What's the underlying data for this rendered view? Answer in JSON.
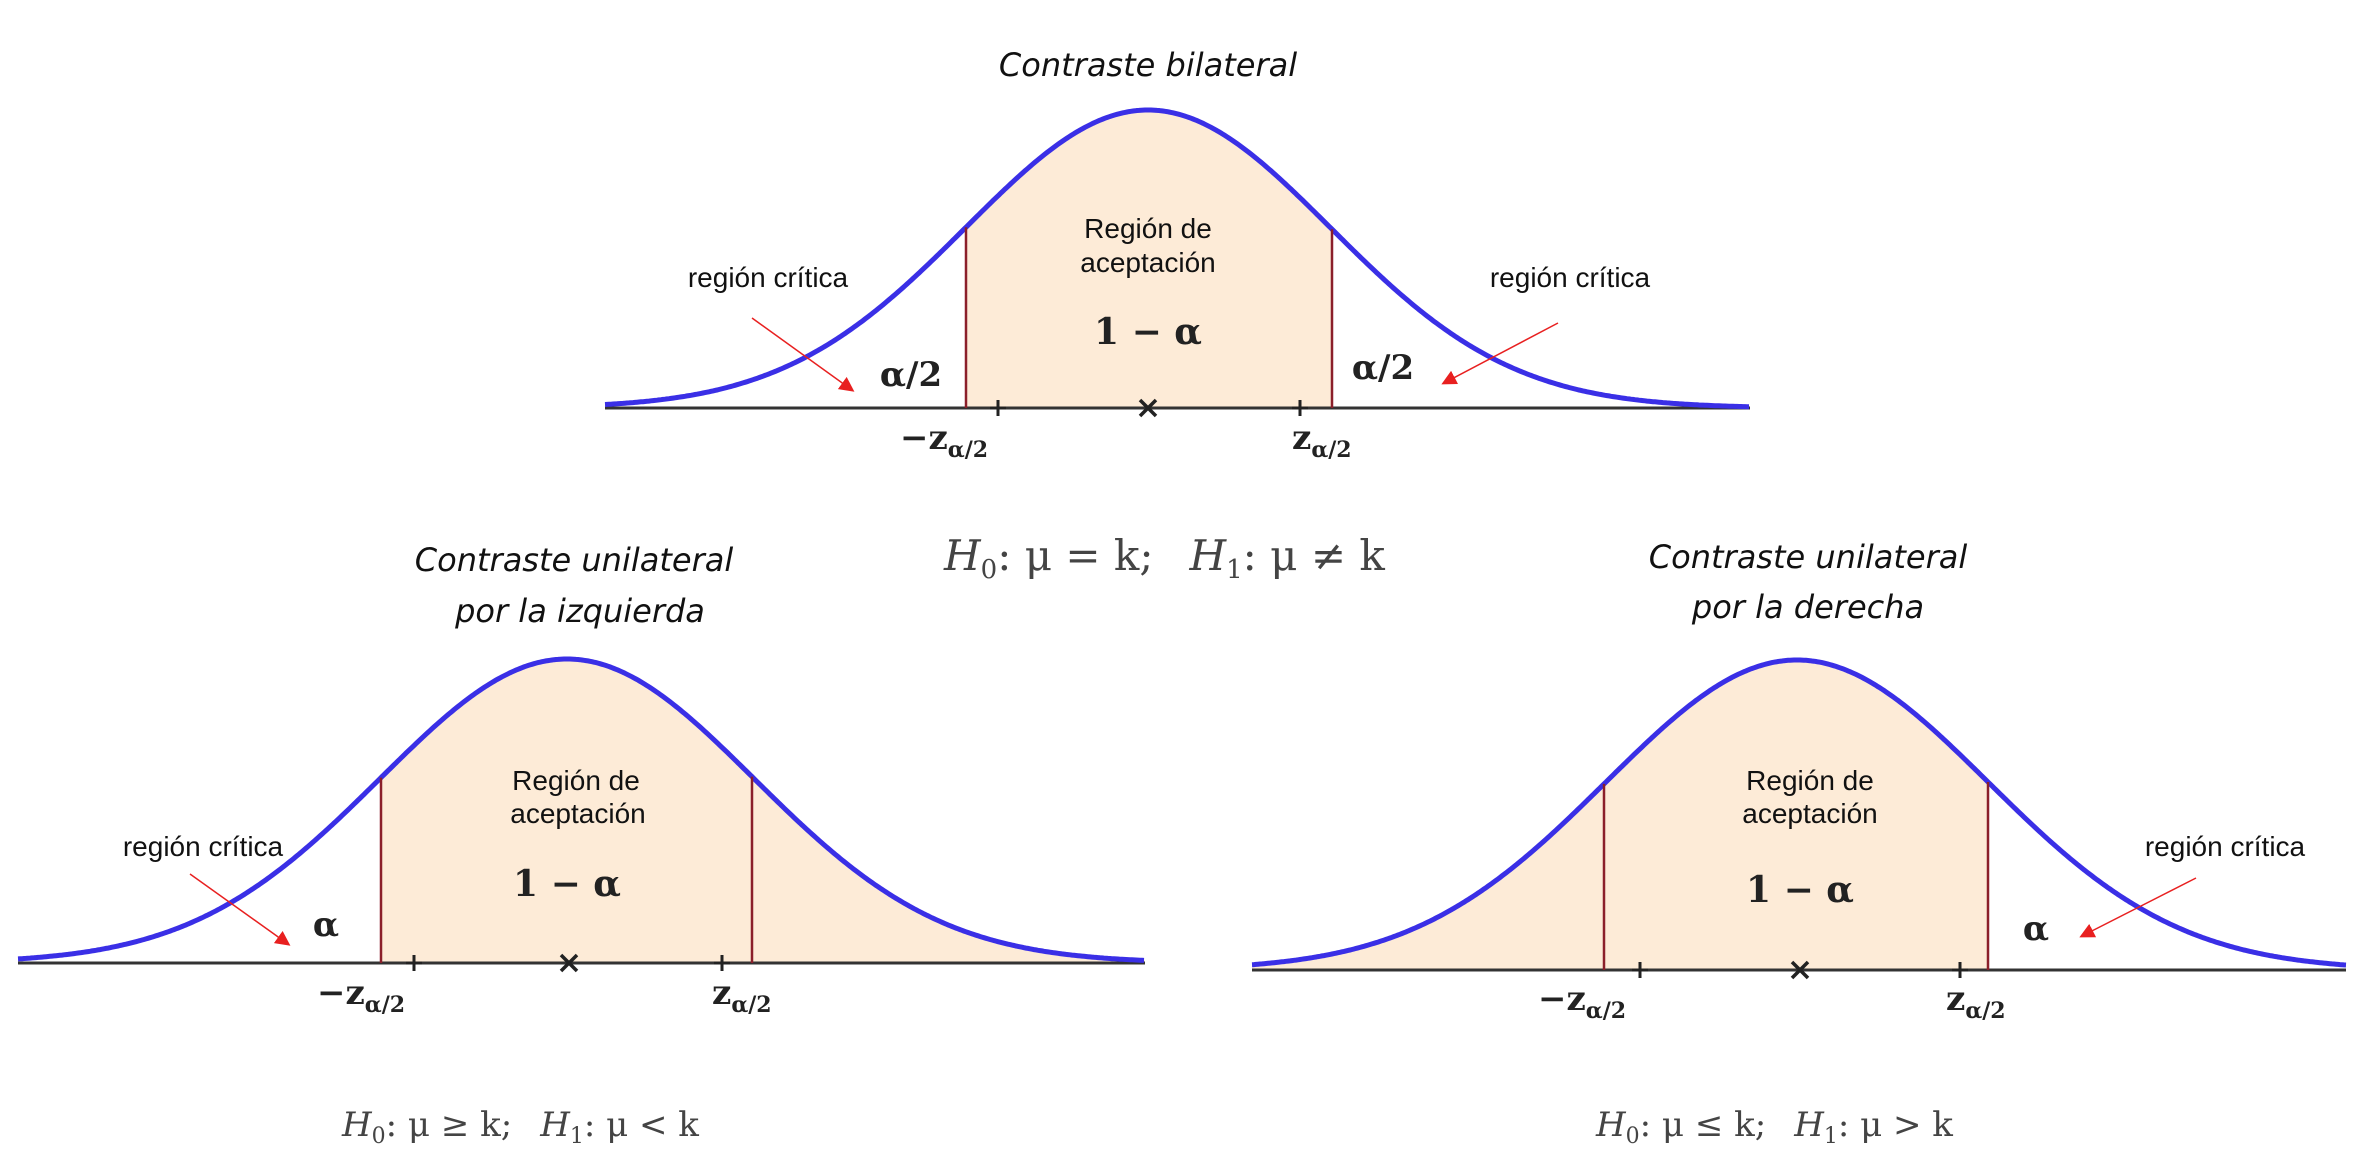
{
  "panels": [
    {
      "id": "bilateral",
      "title_lines": [
        "Contraste bilateral"
      ],
      "acceptance_lines": [
        "Región de",
        "aceptación"
      ],
      "acceptance_prob": "1 − α",
      "critical_label_left": "región crítica",
      "critical_label_right": "región crítica",
      "tail_left_label": "α/2",
      "tail_right_label": "α/2",
      "neg_z": "−z",
      "pos_z": "z",
      "z_sub": "α/2",
      "hypothesis": {
        "h0": "H",
        "h0_sub": "0",
        "h0_rel": ":  μ = k;",
        "h1": "H",
        "h1_sub": "1",
        "h1_rel": ":  μ ≠ k"
      }
    },
    {
      "id": "left",
      "title_lines": [
        "Contraste  unilateral",
        "por la izquierda"
      ],
      "acceptance_lines": [
        "Región de",
        "aceptación"
      ],
      "acceptance_prob": "1 − α",
      "critical_label": "región crítica",
      "tail_label": "α",
      "neg_z": "−z",
      "pos_z": "z",
      "z_sub": "α/2",
      "hypothesis": {
        "h0": "H",
        "h0_sub": "0",
        "h0_rel": ":  μ ≥ k;",
        "h1": "H",
        "h1_sub": "1",
        "h1_rel": ":  μ < k"
      }
    },
    {
      "id": "right",
      "title_lines": [
        "Contraste  unilateral",
        "por la derecha"
      ],
      "acceptance_lines": [
        "Región de",
        "aceptación"
      ],
      "acceptance_prob": "1 − α",
      "critical_label": "región crítica",
      "tail_label": "α",
      "neg_z": "−z",
      "pos_z": "z",
      "z_sub": "α/2",
      "hypothesis": {
        "h0": "H",
        "h0_sub": "0",
        "h0_rel": ":  μ ≤ k;",
        "h1": "H",
        "h1_sub": "1",
        "h1_rel": ":  μ > k"
      }
    }
  ],
  "colors": {
    "curve": "#3a2fe6",
    "fill": "#fdebd7",
    "boundary": "#8b1f2a",
    "axis": "#333333",
    "arrow": "#e82020"
  }
}
